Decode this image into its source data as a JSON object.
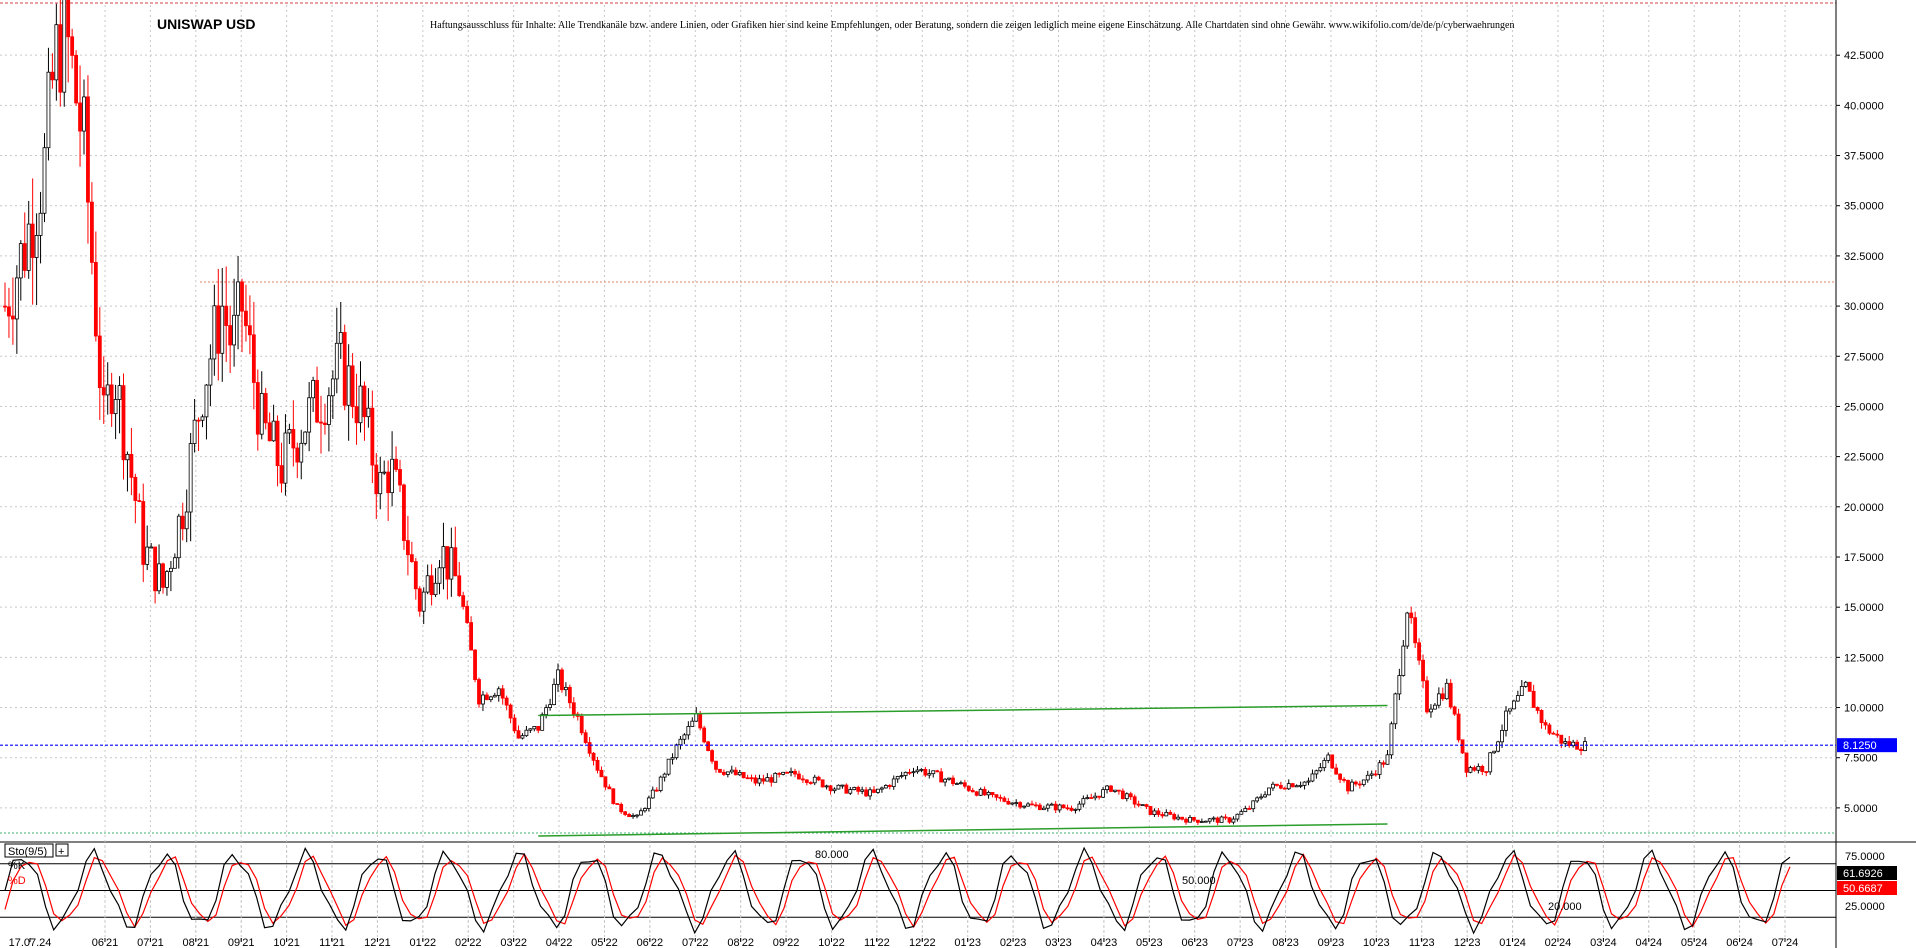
{
  "header": {
    "title": "UNISWAP USD",
    "disclaimer": "Haftungsausschluss für Inhalte: Alle Trendkanäle bzw. andere Linien, oder Grafiken hier sind keine Empfehlungen, oder Beratung, sondern die zeigen lediglich meine eigene Einschätzung. Alle Chartdaten sind ohne Gewähr. www.wikifolio.com/de/de/p/cyberwaehrungen"
  },
  "colors": {
    "up": "#000000",
    "down": "#ff0000",
    "trendline": "#2a9d2a",
    "current_price_line": "#0000ff",
    "resistance_line": "#e08060",
    "support_line": "#3cb371",
    "k_line": "#000000",
    "d_line": "#ff0000",
    "grid": "#c8c8c8"
  },
  "indicator": {
    "name": "Sto(9/5)",
    "k_label": "%K",
    "d_label": "%D",
    "k_value": "61.6926",
    "d_value": "50.6687",
    "level_labels": [
      "80.000",
      "50.000",
      "20.000"
    ],
    "axis_labels": [
      "75.0000",
      "25.0000"
    ]
  },
  "chart_data": {
    "type": "candlestick",
    "title": "UNISWAP USD",
    "xlabel": "",
    "ylabel": "",
    "ylim": [
      3.5,
      45
    ],
    "y_ticks": [
      5,
      7.5,
      10,
      12.5,
      15,
      17.5,
      20,
      22.5,
      25,
      27.5,
      30,
      32.5,
      35,
      37.5,
      40,
      42.5
    ],
    "y_tick_labels": [
      "5.0000",
      "7.5000",
      "10.0000",
      "12.5000",
      "15.0000",
      "17.5000",
      "20.0000",
      "22.5000",
      "25.0000",
      "27.5000",
      "30.0000",
      "32.5000",
      "35.0000",
      "37.5000",
      "40.0000",
      "42.5000"
    ],
    "x_labels": [
      "17.07.24",
      "06'21",
      "07'21",
      "08'21",
      "09'21",
      "10'21",
      "11'21",
      "12'21",
      "01'22",
      "02'22",
      "03'22",
      "04'22",
      "05'22",
      "06'22",
      "07'22",
      "08'22",
      "09'22",
      "10'22",
      "11'22",
      "12'22",
      "01'23",
      "02'23",
      "03'23",
      "04'23",
      "05'23",
      "06'23",
      "07'23",
      "08'23",
      "09'23",
      "10'23",
      "11'23",
      "12'23",
      "01'24",
      "02'24",
      "03'24",
      "04'24",
      "05'24",
      "06'24",
      "07'24"
    ],
    "grid": true,
    "current_price": 8.125,
    "current_price_label": "8.1250",
    "price_path": [
      [
        0,
        30
      ],
      [
        2,
        33
      ],
      [
        4,
        37
      ],
      [
        5,
        42
      ],
      [
        6,
        44
      ],
      [
        8,
        38
      ],
      [
        10,
        24
      ],
      [
        11,
        27
      ],
      [
        12,
        24
      ],
      [
        14,
        18
      ],
      [
        16,
        16
      ],
      [
        18,
        20
      ],
      [
        20,
        26
      ],
      [
        22,
        30
      ],
      [
        23,
        28
      ],
      [
        24,
        30
      ],
      [
        26,
        24
      ],
      [
        28,
        22
      ],
      [
        30,
        24
      ],
      [
        32,
        25.5
      ],
      [
        34,
        27
      ],
      [
        36,
        25
      ],
      [
        38,
        21
      ],
      [
        39,
        22
      ],
      [
        40,
        20
      ],
      [
        42,
        15
      ],
      [
        44,
        18
      ],
      [
        46,
        16
      ],
      [
        48,
        10.5
      ],
      [
        50,
        11
      ],
      [
        52,
        8.5
      ],
      [
        54,
        9
      ],
      [
        56,
        11.5
      ],
      [
        58,
        9.5
      ],
      [
        60,
        7
      ],
      [
        62,
        5
      ],
      [
        64,
        4.5
      ],
      [
        66,
        6
      ],
      [
        68,
        8
      ],
      [
        70,
        9.5
      ],
      [
        72,
        7
      ],
      [
        76,
        6.3
      ],
      [
        80,
        6.7
      ],
      [
        84,
        6
      ],
      [
        88,
        5.7
      ],
      [
        92,
        7
      ],
      [
        96,
        6.3
      ],
      [
        100,
        5.5
      ],
      [
        104,
        5.1
      ],
      [
        108,
        5
      ],
      [
        112,
        6
      ],
      [
        116,
        4.8
      ],
      [
        120,
        4.4
      ],
      [
        124,
        4.4
      ],
      [
        126,
        5
      ],
      [
        128,
        6
      ],
      [
        130,
        6.2
      ],
      [
        132,
        6.3
      ],
      [
        134,
        7.5
      ],
      [
        136,
        6
      ],
      [
        138,
        6.5
      ],
      [
        140,
        7.5
      ],
      [
        142,
        15
      ],
      [
        144,
        10
      ],
      [
        146,
        11
      ],
      [
        148,
        7
      ],
      [
        150,
        7
      ],
      [
        152,
        9.5
      ],
      [
        154,
        11
      ],
      [
        156,
        9
      ],
      [
        158,
        8.2
      ],
      [
        160,
        8.1
      ]
    ],
    "trendlines": [
      {
        "from": [
          54,
          9.6
        ],
        "to": [
          140,
          10.1
        ]
      },
      {
        "from": [
          54,
          3.6
        ],
        "to": [
          140,
          4.2
        ]
      }
    ],
    "horizontal_lines": [
      {
        "value": 31.2,
        "style": "dotted"
      },
      {
        "value": 3.75,
        "style": "dotted"
      }
    ],
    "stochastic": {
      "k_current": 61.6926,
      "d_current": 50.6687,
      "levels": [
        80,
        50,
        20
      ]
    }
  }
}
